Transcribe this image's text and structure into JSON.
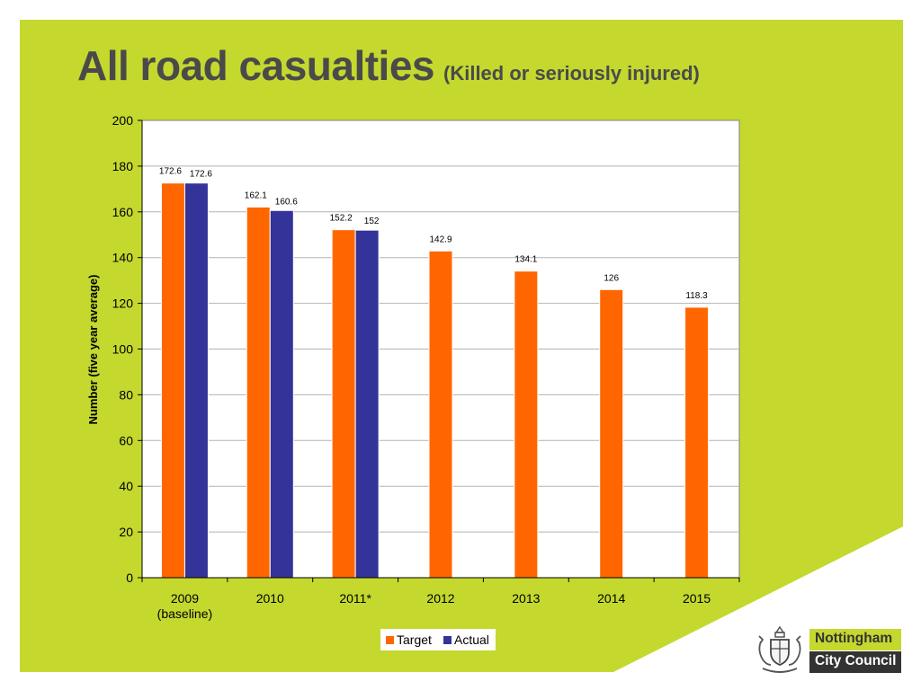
{
  "slide": {
    "title": "All road casualties",
    "subtitle": "(Killed or seriously injured)",
    "accent_color": "#c4d82e"
  },
  "brand": {
    "line1": "Nottingham",
    "line2": "City Council",
    "crest_icon": "coat-of-arms-icon"
  },
  "chart_data": {
    "type": "bar",
    "categories": [
      "2009\n(baseline)",
      "2010",
      "2011*",
      "2012",
      "2013",
      "2014",
      "2015"
    ],
    "series": [
      {
        "name": "Target",
        "color": "#ff6600",
        "values": [
          172.6,
          162.1,
          152.2,
          142.9,
          134.1,
          126,
          118.3
        ]
      },
      {
        "name": "Actual",
        "color": "#333399",
        "values": [
          172.6,
          160.6,
          152,
          null,
          null,
          null,
          null
        ]
      }
    ],
    "ylabel": "Number (five year average)",
    "xlabel": "",
    "ylim": [
      0,
      200
    ],
    "yticks": [
      0,
      20,
      40,
      60,
      80,
      100,
      120,
      140,
      160,
      180,
      200
    ],
    "grid": true,
    "legend": "bottom-center"
  }
}
